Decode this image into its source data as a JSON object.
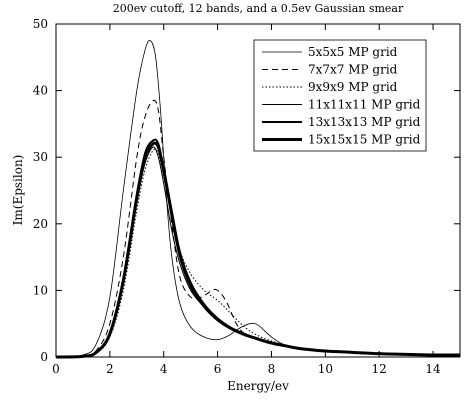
{
  "chart_data": {
    "type": "line",
    "title": "200ev cutoff, 12 bands, and a 0.5ev Gaussian smear",
    "xlabel": "Energy/ev",
    "ylabel": "Im(Epsilon)",
    "xlim": [
      0,
      15
    ],
    "ylim": [
      0,
      50
    ],
    "xticks": [
      0,
      2,
      4,
      6,
      8,
      10,
      12,
      14
    ],
    "yticks": [
      0,
      10,
      20,
      30,
      40,
      50
    ],
    "grid": false,
    "legend_position": "top-right",
    "series": [
      {
        "name": "5x5x5 MP grid",
        "style": "solid",
        "width": 0.8,
        "x": [
          0,
          1.0,
          1.5,
          2.0,
          2.5,
          3.0,
          3.3,
          3.5,
          3.7,
          3.9,
          4.1,
          4.3,
          4.6,
          5.0,
          5.5,
          6.0,
          6.4,
          6.8,
          7.2,
          7.5,
          8.0,
          8.5,
          9.0,
          10,
          11,
          12,
          13,
          14,
          15
        ],
        "y": [
          0,
          0.3,
          2.0,
          9.0,
          25.0,
          40.0,
          46.0,
          47.5,
          45.0,
          36.0,
          24.0,
          15.0,
          8.0,
          4.5,
          3.0,
          2.6,
          3.2,
          4.3,
          5.0,
          4.8,
          3.0,
          1.8,
          1.3,
          0.9,
          0.6,
          0.5,
          0.4,
          0.3,
          0.3
        ]
      },
      {
        "name": "7x7x7 MP grid",
        "style": "dashed",
        "width": 1,
        "x": [
          0,
          1.0,
          1.5,
          2.0,
          2.5,
          3.0,
          3.3,
          3.6,
          3.8,
          4.0,
          4.3,
          4.6,
          5.0,
          5.4,
          5.8,
          6.0,
          6.3,
          6.7,
          7.0,
          7.5,
          8.0,
          8.5,
          9.0,
          10,
          11,
          12,
          13,
          14,
          15
        ],
        "y": [
          0,
          0.2,
          1.0,
          5.0,
          15.0,
          30.0,
          36.0,
          38.5,
          37.0,
          30.0,
          20.0,
          12.0,
          9.0,
          9.0,
          10.0,
          10.0,
          8.5,
          5.0,
          3.5,
          2.6,
          2.0,
          1.6,
          1.2,
          0.9,
          0.7,
          0.5,
          0.4,
          0.3,
          0.3
        ]
      },
      {
        "name": "9x9x9 MP grid",
        "style": "dotted",
        "width": 1,
        "x": [
          0,
          1.0,
          1.5,
          2.0,
          2.5,
          3.0,
          3.3,
          3.6,
          3.8,
          4.0,
          4.3,
          4.6,
          5.0,
          5.5,
          6.0,
          6.5,
          7.0,
          7.5,
          8.0,
          8.5,
          9.0,
          10,
          11,
          12,
          13,
          14,
          15
        ],
        "y": [
          0,
          0.1,
          0.6,
          3.0,
          10.0,
          22.0,
          28.0,
          31.0,
          30.5,
          27.0,
          21.0,
          16.0,
          12.5,
          10.0,
          8.5,
          6.5,
          4.5,
          3.2,
          2.4,
          1.8,
          1.4,
          0.9,
          0.7,
          0.5,
          0.4,
          0.3,
          0.3
        ]
      },
      {
        "name": "11x11x11 MP grid",
        "style": "solid",
        "width": 1,
        "x": [
          0,
          1.0,
          1.5,
          2.0,
          2.5,
          3.0,
          3.3,
          3.6,
          3.8,
          4.0,
          4.3,
          4.6,
          5.0,
          5.5,
          6.0,
          6.5,
          7.0,
          7.5,
          8.0,
          8.5,
          9.0,
          10,
          11,
          12,
          13,
          14,
          15
        ],
        "y": [
          0,
          0.1,
          0.7,
          3.5,
          11.0,
          23.0,
          29.0,
          31.5,
          30.0,
          26.0,
          19.0,
          14.0,
          10.0,
          7.5,
          5.5,
          4.2,
          3.2,
          2.6,
          2.1,
          1.7,
          1.3,
          0.9,
          0.7,
          0.5,
          0.4,
          0.3,
          0.3
        ]
      },
      {
        "name": "13x13x13 MP grid",
        "style": "solid",
        "width": 2,
        "x": [
          0,
          1.0,
          1.5,
          2.0,
          2.5,
          3.0,
          3.3,
          3.6,
          3.8,
          4.0,
          4.3,
          4.6,
          5.0,
          5.5,
          6.0,
          6.5,
          7.0,
          7.5,
          8.0,
          8.5,
          9.0,
          10,
          11,
          12,
          13,
          14,
          15
        ],
        "y": [
          0,
          0.1,
          0.7,
          3.5,
          11.5,
          24.0,
          30.5,
          32.5,
          32.0,
          28.0,
          21.0,
          15.0,
          10.5,
          7.5,
          5.5,
          4.2,
          3.3,
          2.7,
          2.1,
          1.7,
          1.3,
          0.9,
          0.7,
          0.5,
          0.4,
          0.3,
          0.3
        ]
      },
      {
        "name": "15x15x15 MP grid",
        "style": "solid",
        "width": 3,
        "x": [
          0,
          1.0,
          1.5,
          2.0,
          2.5,
          3.0,
          3.3,
          3.6,
          3.8,
          4.0,
          4.3,
          4.6,
          5.0,
          5.5,
          6.0,
          6.5,
          7.0,
          7.5,
          8.0,
          8.5,
          9.0,
          10,
          11,
          12,
          13,
          14,
          15
        ],
        "y": [
          0,
          0.1,
          0.7,
          3.5,
          11.5,
          24.0,
          30.0,
          32.0,
          31.5,
          28.0,
          21.5,
          15.5,
          11.0,
          7.8,
          5.7,
          4.3,
          3.4,
          2.7,
          2.1,
          1.7,
          1.3,
          0.9,
          0.7,
          0.5,
          0.4,
          0.3,
          0.3
        ]
      }
    ]
  }
}
